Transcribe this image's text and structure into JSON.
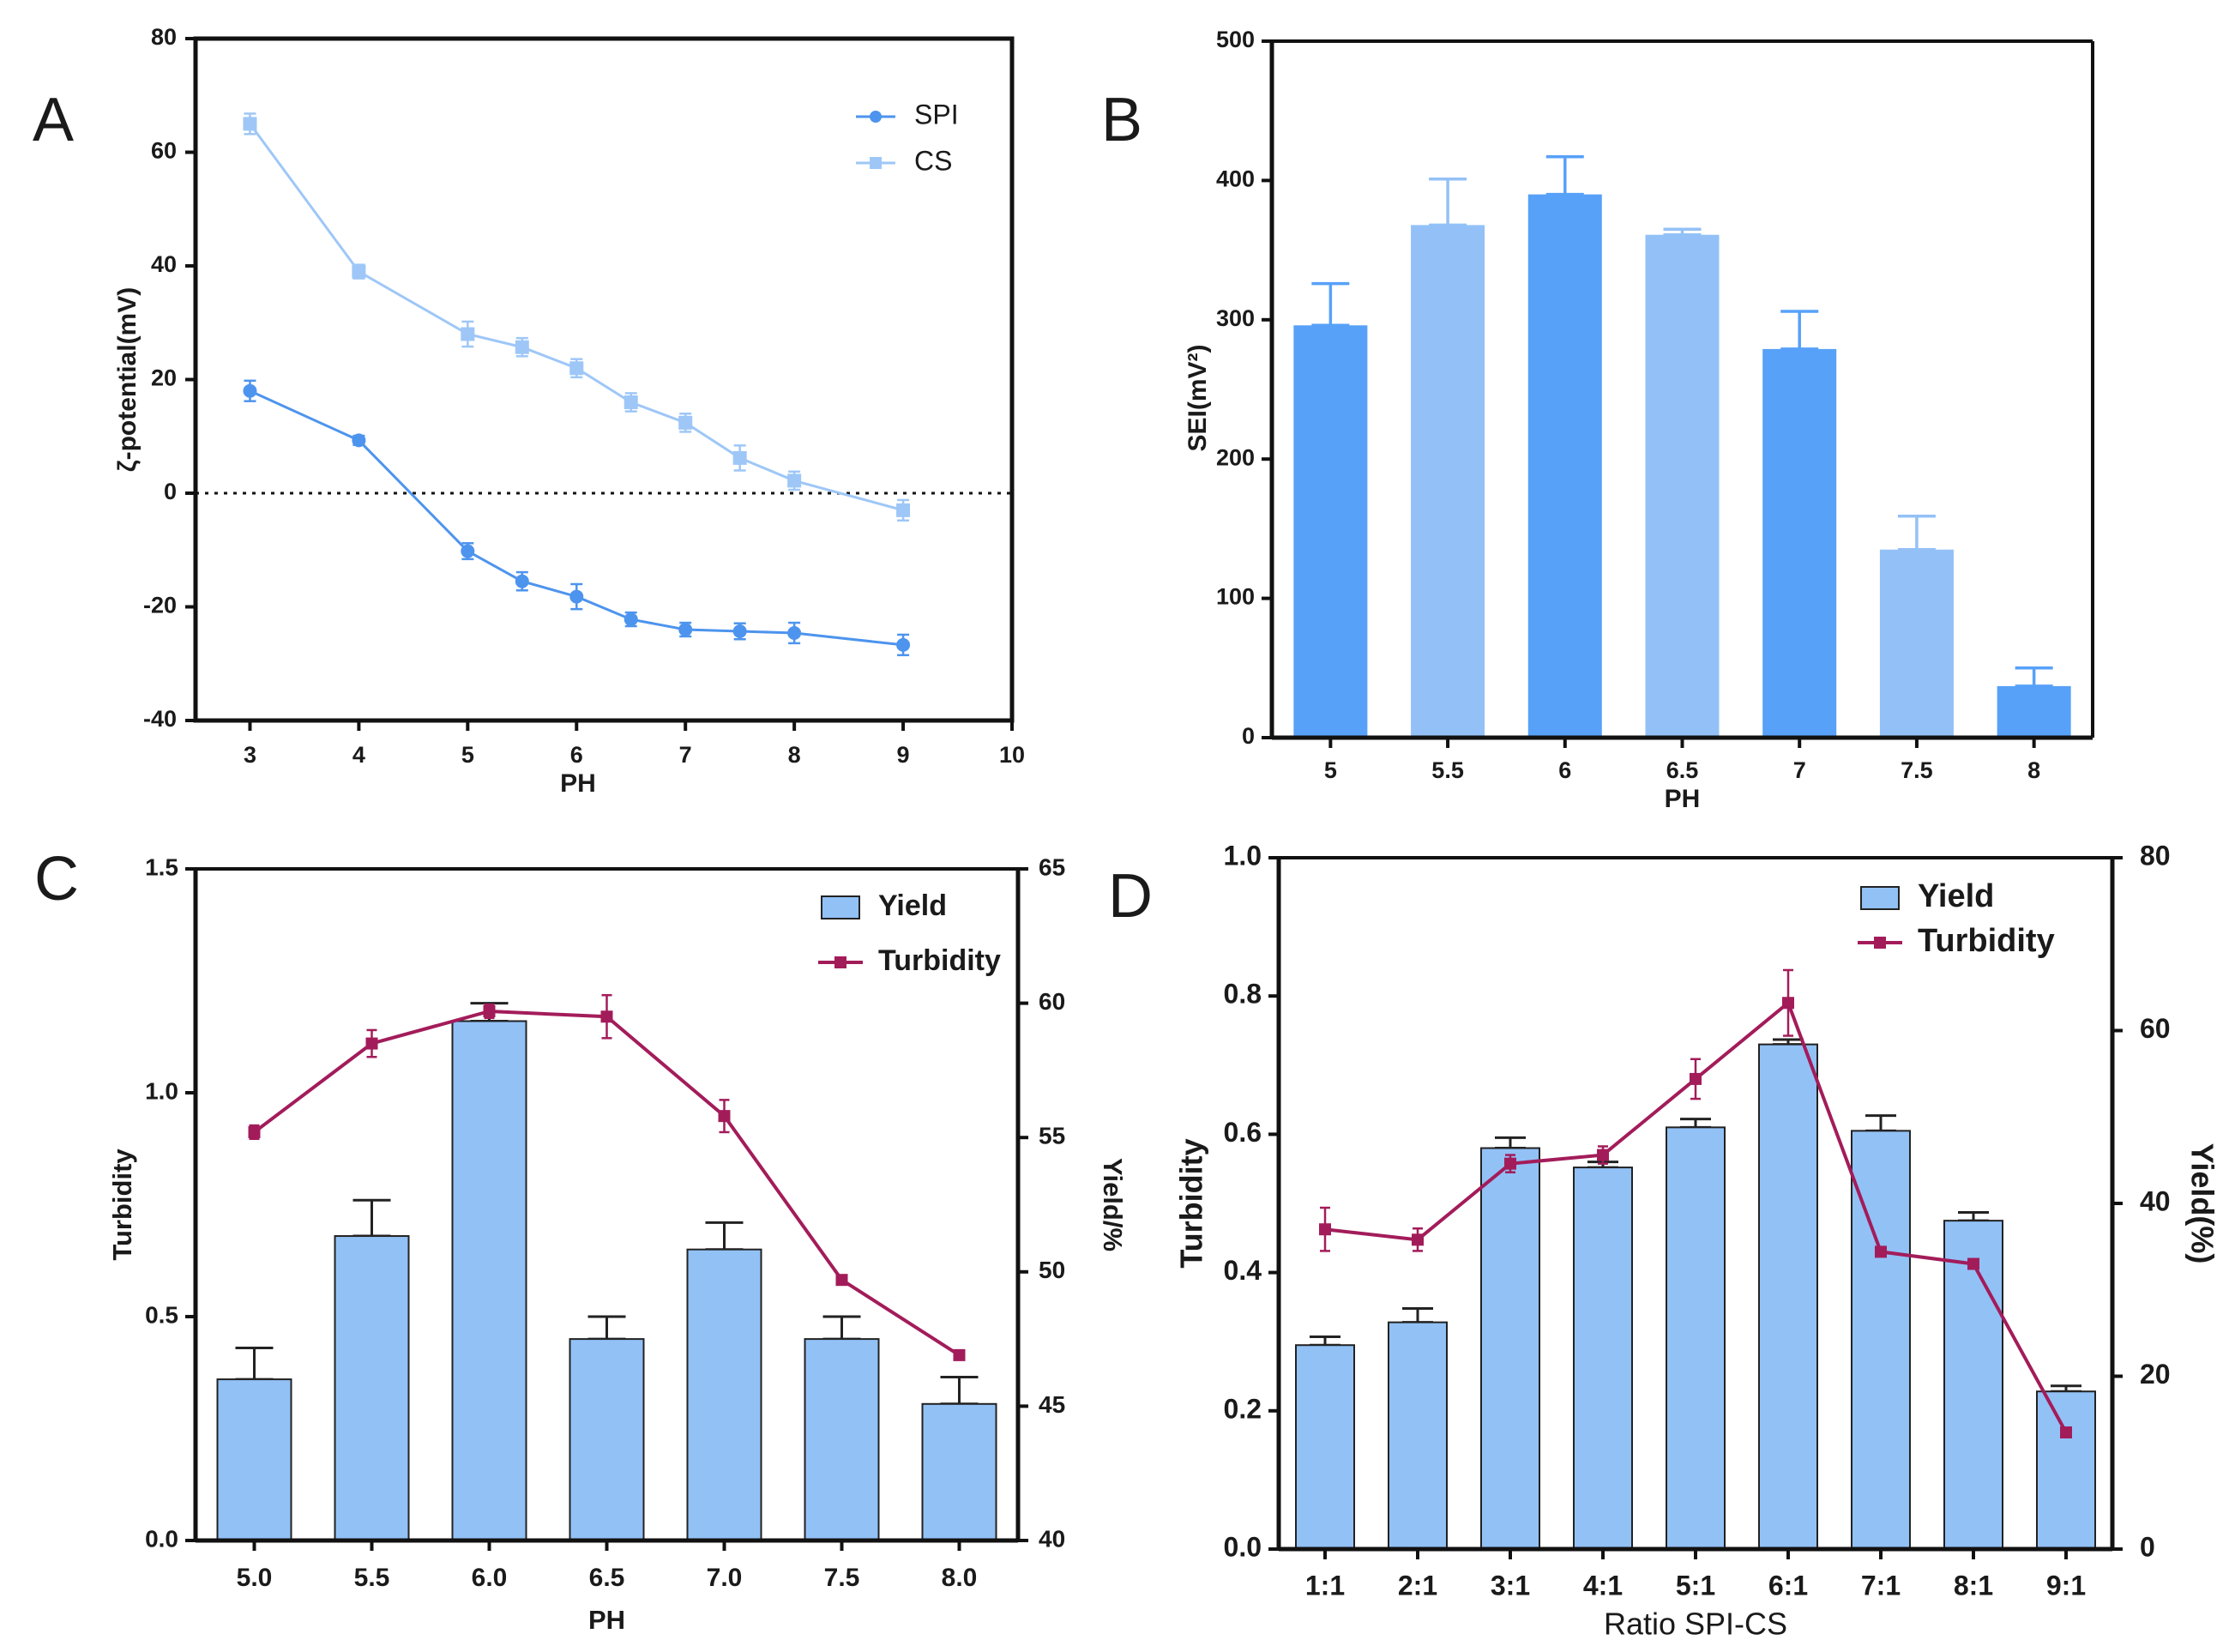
{
  "chart_data": [
    {
      "panel": "A",
      "type": "line",
      "xlabel": "PH",
      "ylabel": "ζ-potential(mV)",
      "xlim": [
        2.5,
        10
      ],
      "ylim": [
        -40,
        80
      ],
      "xticks": [
        "3",
        "4",
        "5",
        "6",
        "7",
        "8",
        "9",
        "10"
      ],
      "yticks": [
        "-40",
        "-20",
        "0",
        "20",
        "40",
        "60",
        "80"
      ],
      "reference_line": 0,
      "legend": {
        "position": "top-right",
        "entries": [
          "SPI",
          "CS"
        ]
      },
      "series": [
        {
          "name": "SPI",
          "color": "#4d94ee",
          "marker": "circle",
          "x": [
            3,
            4,
            5,
            5.5,
            6,
            6.5,
            7,
            7.5,
            8,
            9
          ],
          "y": [
            18,
            9.3,
            -10.2,
            -15.5,
            -18.2,
            -22.2,
            -24,
            -24.3,
            -24.6,
            -26.7
          ],
          "err": [
            1.8,
            0.8,
            1.4,
            1.6,
            2.2,
            1.2,
            1.2,
            1.4,
            1.8,
            1.8
          ]
        },
        {
          "name": "CS",
          "color": "#9ec7f7",
          "marker": "square",
          "x": [
            3,
            4,
            5,
            5.5,
            6,
            6.5,
            7,
            7.5,
            8,
            9
          ],
          "y": [
            65,
            39,
            28,
            25.7,
            22,
            16,
            12.4,
            6.2,
            2.2,
            -3
          ],
          "err": [
            1.8,
            1.2,
            2.2,
            1.6,
            1.6,
            1.6,
            1.6,
            2.2,
            1.6,
            1.8
          ]
        }
      ]
    },
    {
      "panel": "B",
      "type": "bar",
      "xlabel": "PH",
      "ylabel": "SEI(mV²)",
      "ylim": [
        0,
        500
      ],
      "yticks": [
        "0",
        "100",
        "200",
        "300",
        "400",
        "500"
      ],
      "categories": [
        "5",
        "5.5",
        "6",
        "6.5",
        "7",
        "7.5",
        "8"
      ],
      "values": [
        296,
        368,
        390,
        361,
        279,
        135,
        37
      ],
      "err": [
        30,
        33,
        27,
        4,
        27,
        24,
        13
      ],
      "colors": [
        "#57a1f9",
        "#93c1f7",
        "#57a1f9",
        "#93c1f7",
        "#57a1f9",
        "#93c1f7",
        "#57a1f9"
      ]
    },
    {
      "panel": "C",
      "type": "bar",
      "xlabel": "PH",
      "ylabel": "Turbidity",
      "y2label": "Yield/%",
      "ylim": [
        0,
        1.5
      ],
      "y2lim": [
        40,
        65
      ],
      "yticks": [
        "0.0",
        "0.5",
        "1.0",
        "1.5"
      ],
      "y2ticks": [
        "40",
        "45",
        "50",
        "55",
        "60",
        "65"
      ],
      "categories": [
        "5.0",
        "5.5",
        "6.0",
        "6.5",
        "7.0",
        "7.5",
        "8.0"
      ],
      "legend": {
        "position": "top-right",
        "entries": [
          "Yield",
          "Turbidity"
        ]
      },
      "series": [
        {
          "name": "Yield",
          "type": "bar",
          "axis": "left",
          "color": "#92c1f6",
          "values": [
            0.36,
            0.68,
            1.16,
            0.45,
            0.65,
            0.45,
            0.305
          ],
          "err": [
            0.07,
            0.08,
            0.04,
            0.05,
            0.06,
            0.05,
            0.06
          ]
        },
        {
          "name": "Turbidity",
          "type": "line",
          "axis": "right",
          "color": "#a31c5a",
          "values": [
            55.2,
            58.5,
            59.7,
            59.5,
            55.8,
            49.7,
            46.9
          ],
          "err": [
            0.25,
            0.5,
            0.25,
            0.8,
            0.6,
            0.15,
            0.15
          ]
        }
      ]
    },
    {
      "panel": "D",
      "type": "bar",
      "xlabel": "Ratio SPI-CS",
      "ylabel": "Turbidity",
      "y2label": "Yield(%)",
      "ylim": [
        0,
        1.0
      ],
      "y2lim": [
        0,
        80
      ],
      "yticks": [
        "0.0",
        "0.2",
        "0.4",
        "0.6",
        "0.8",
        "1.0"
      ],
      "y2ticks": [
        "0",
        "20",
        "40",
        "60",
        "80"
      ],
      "categories": [
        "1:1",
        "2:1",
        "3:1",
        "4:1",
        "5:1",
        "6:1",
        "7:1",
        "8:1",
        "9:1"
      ],
      "legend": {
        "position": "top-right",
        "entries": [
          "Yield",
          "Turbidity"
        ]
      },
      "series": [
        {
          "name": "Yield",
          "type": "bar",
          "axis": "left",
          "color": "#92c1f6",
          "values": [
            0.295,
            0.328,
            0.58,
            0.552,
            0.61,
            0.73,
            0.605,
            0.475,
            0.228
          ],
          "err": [
            0.012,
            0.02,
            0.015,
            0.008,
            0.012,
            0.007,
            0.022,
            0.012,
            0.008
          ]
        },
        {
          "name": "Turbidity",
          "type": "line",
          "axis": "right",
          "color": "#a31c5a",
          "values": [
            37,
            35.8,
            44.6,
            45.6,
            54.4,
            63.2,
            34.4,
            33,
            13.5
          ],
          "err": [
            2.5,
            1.3,
            1.0,
            1.0,
            2.3,
            3.8,
            0.4,
            0.4,
            0.3
          ]
        }
      ]
    }
  ]
}
